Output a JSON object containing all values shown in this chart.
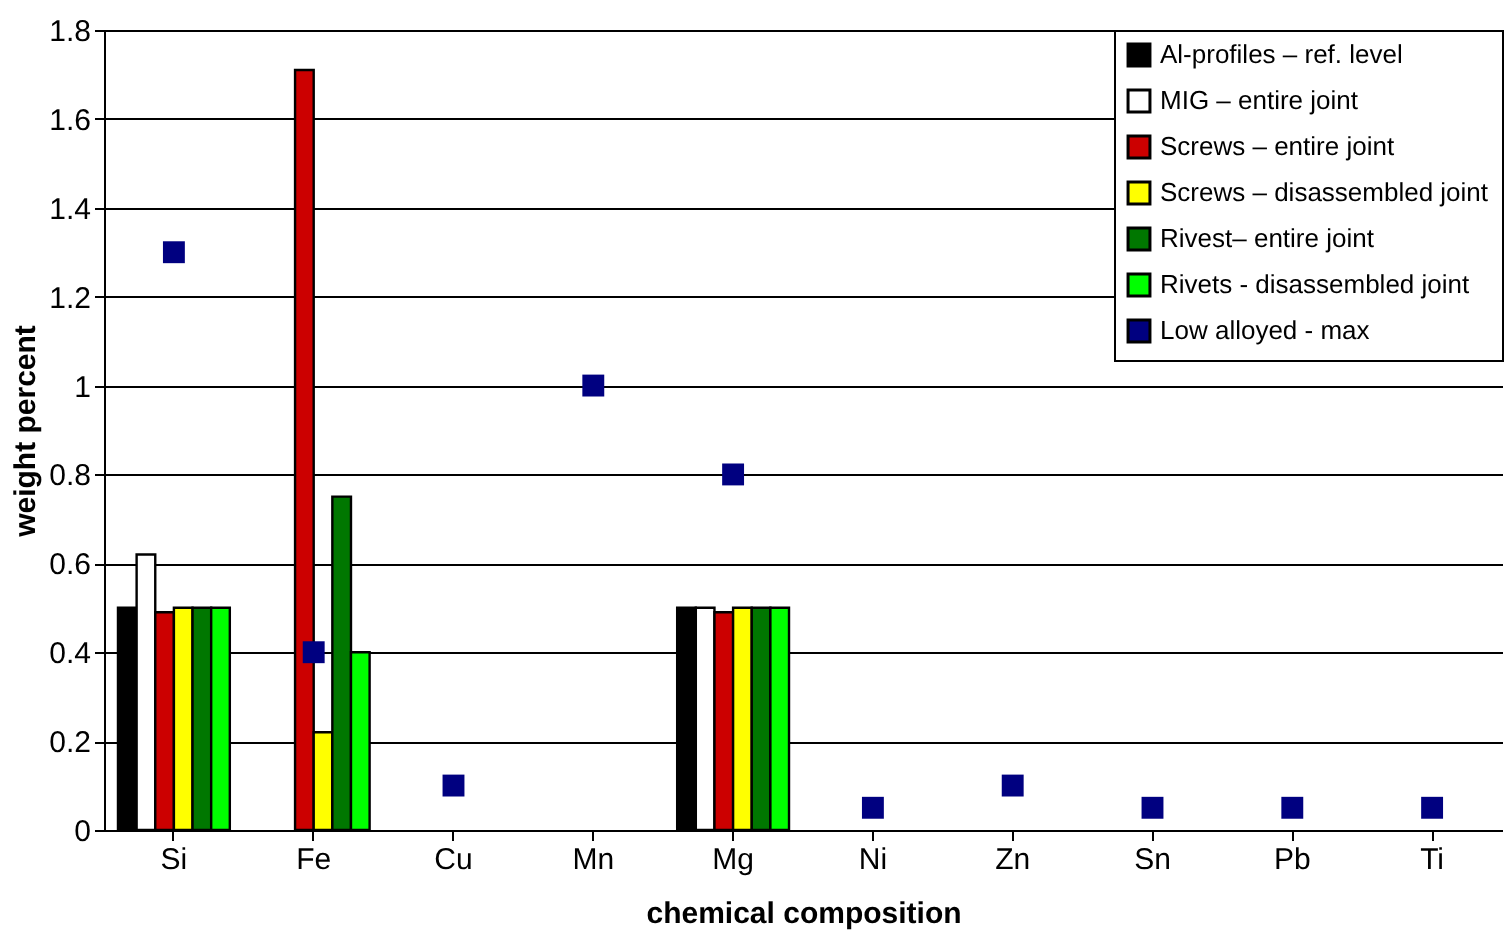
{
  "chart_data": {
    "type": "bar",
    "xlabel": "chemical composition",
    "ylabel": "weight percent",
    "categories": [
      "Si",
      "Fe",
      "Cu",
      "Mn",
      "Mg",
      "Ni",
      "Zn",
      "Sn",
      "Pb",
      "Ti"
    ],
    "series": [
      {
        "name": "Al-profiles – ref. level",
        "color": "#000000",
        "values": [
          0.5,
          null,
          null,
          null,
          0.5,
          null,
          null,
          null,
          null,
          null
        ]
      },
      {
        "name": "MIG – entire joint",
        "color": "#ffffff",
        "values": [
          0.62,
          null,
          null,
          null,
          0.5,
          null,
          null,
          null,
          null,
          null
        ]
      },
      {
        "name": "Screws – entire joint",
        "color": "#cc0000",
        "values": [
          0.49,
          1.71,
          null,
          null,
          0.49,
          null,
          null,
          null,
          null,
          null
        ]
      },
      {
        "name": "Screws – disassembled joint",
        "color": "#ffff00",
        "values": [
          0.5,
          0.22,
          null,
          null,
          0.5,
          null,
          null,
          null,
          null,
          null
        ]
      },
      {
        "name": "Rivest– entire joint",
        "color": "#007700",
        "values": [
          0.5,
          0.75,
          null,
          null,
          0.5,
          null,
          null,
          null,
          null,
          null
        ]
      },
      {
        "name": "Rivets - disassembled joint",
        "color": "#00ff00",
        "values": [
          0.5,
          0.4,
          null,
          null,
          0.5,
          null,
          null,
          null,
          null,
          null
        ]
      },
      {
        "name": "Low alloyed - max",
        "color": "#000080",
        "type": "scatter",
        "marker": "square",
        "values": [
          1.3,
          0.4,
          0.1,
          1.0,
          0.8,
          0.05,
          0.1,
          0.05,
          0.05,
          0.05
        ]
      }
    ],
    "ylim": [
      0,
      1.8
    ],
    "yticks": [
      0,
      0.2,
      0.4,
      0.6,
      0.8,
      1,
      1.2,
      1.4,
      1.6,
      1.8
    ],
    "grid": "y",
    "legend": "top right"
  }
}
